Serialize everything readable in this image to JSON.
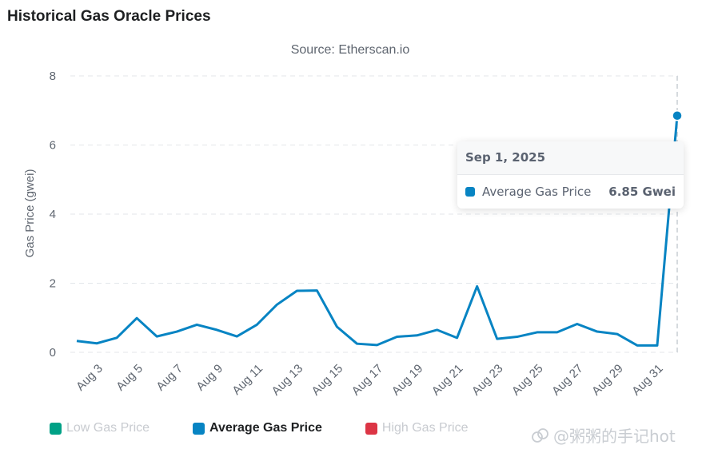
{
  "card": {
    "title": "Historical Gas Oracle Prices"
  },
  "chart_data": {
    "type": "line",
    "title": "Source: Etherscan.io",
    "xlabel": "",
    "ylabel": "Gas Price (gwei)",
    "ylim": [
      0,
      8
    ],
    "yticks": [
      0,
      2,
      4,
      6,
      8
    ],
    "grid": true,
    "x": [
      "Aug 2",
      "Aug 3",
      "Aug 4",
      "Aug 5",
      "Aug 6",
      "Aug 7",
      "Aug 8",
      "Aug 9",
      "Aug 10",
      "Aug 11",
      "Aug 12",
      "Aug 13",
      "Aug 14",
      "Aug 15",
      "Aug 16",
      "Aug 17",
      "Aug 18",
      "Aug 19",
      "Aug 20",
      "Aug 21",
      "Aug 22",
      "Aug 23",
      "Aug 24",
      "Aug 25",
      "Aug 26",
      "Aug 27",
      "Aug 28",
      "Aug 29",
      "Aug 30",
      "Aug 31",
      "Sep 1"
    ],
    "xtick_labels": [
      "Aug 3",
      "Aug 5",
      "Aug 7",
      "Aug 9",
      "Aug 11",
      "Aug 13",
      "Aug 15",
      "Aug 17",
      "Aug 19",
      "Aug 21",
      "Aug 23",
      "Aug 25",
      "Aug 27",
      "Aug 29",
      "Aug 31"
    ],
    "series": [
      {
        "name": "Average Gas Price",
        "color": "#0784c3",
        "values": [
          0.33,
          0.26,
          0.42,
          0.99,
          0.46,
          0.6,
          0.8,
          0.65,
          0.46,
          0.8,
          1.38,
          1.78,
          1.79,
          0.74,
          0.25,
          0.21,
          0.45,
          0.49,
          0.65,
          0.42,
          1.91,
          0.39,
          0.45,
          0.58,
          0.58,
          0.82,
          0.6,
          0.53,
          0.2,
          0.2,
          6.85
        ]
      }
    ],
    "legend": [
      {
        "label": "Low Gas Price",
        "color": "#00a186",
        "enabled": false
      },
      {
        "label": "Average Gas Price",
        "color": "#0784c3",
        "enabled": true
      },
      {
        "label": "High Gas Price",
        "color": "#dc3545",
        "enabled": false
      }
    ],
    "legend_position": "bottom-left",
    "tooltip": {
      "date": "Sep 1, 2025",
      "series": "Average Gas Price",
      "value": "6.85 Gwei",
      "color": "#0784c3"
    }
  },
  "watermark": {
    "text": "@粥粥的手记hot"
  }
}
